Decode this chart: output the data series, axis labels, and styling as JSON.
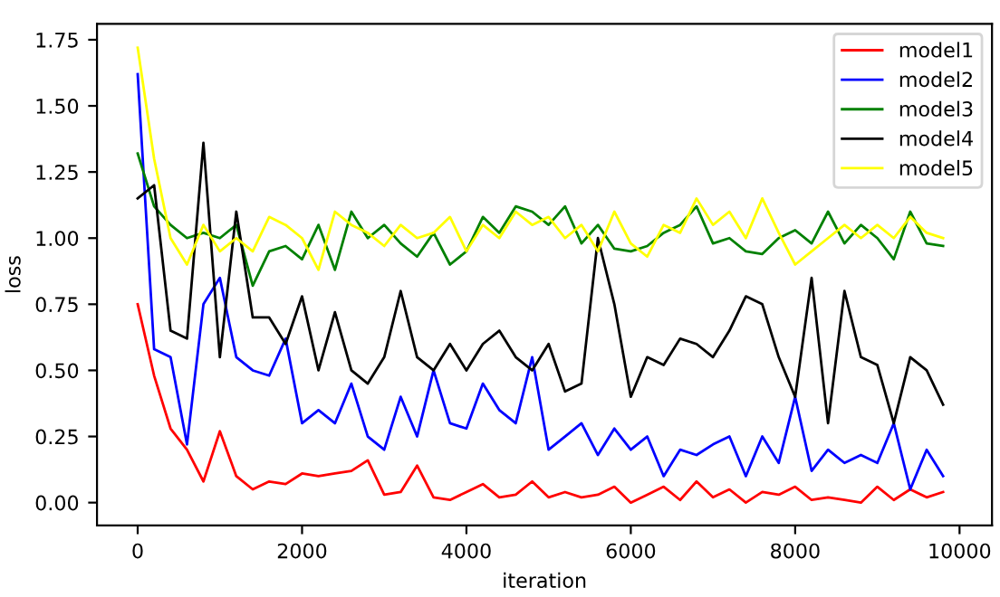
{
  "chart_data": {
    "type": "line",
    "xlabel": "iteration",
    "ylabel": "loss",
    "x": [
      0,
      200,
      400,
      600,
      800,
      1000,
      1200,
      1400,
      1600,
      1800,
      2000,
      2200,
      2400,
      2600,
      2800,
      3000,
      3200,
      3400,
      3600,
      3800,
      4000,
      4200,
      4400,
      4600,
      4800,
      5000,
      5200,
      5400,
      5600,
      5800,
      6000,
      6200,
      6400,
      6600,
      6800,
      7000,
      7200,
      7400,
      7600,
      7800,
      8000,
      8200,
      8400,
      8600,
      8800,
      9000,
      9200,
      9400,
      9600,
      9800
    ],
    "series": [
      {
        "name": "model1",
        "color": "#ff0000",
        "values": [
          0.75,
          0.48,
          0.28,
          0.2,
          0.08,
          0.27,
          0.1,
          0.05,
          0.08,
          0.07,
          0.11,
          0.1,
          0.11,
          0.12,
          0.16,
          0.03,
          0.04,
          0.14,
          0.02,
          0.01,
          0.04,
          0.07,
          0.02,
          0.03,
          0.08,
          0.02,
          0.04,
          0.02,
          0.03,
          0.06,
          0.0,
          0.03,
          0.06,
          0.01,
          0.08,
          0.02,
          0.05,
          0.0,
          0.04,
          0.03,
          0.06,
          0.01,
          0.02,
          0.01,
          0.0,
          0.06,
          0.01,
          0.05,
          0.02,
          0.04
        ]
      },
      {
        "name": "model2",
        "color": "#0000ff",
        "values": [
          1.62,
          0.58,
          0.55,
          0.22,
          0.75,
          0.85,
          0.55,
          0.5,
          0.48,
          0.62,
          0.3,
          0.35,
          0.3,
          0.45,
          0.25,
          0.2,
          0.4,
          0.25,
          0.5,
          0.3,
          0.28,
          0.45,
          0.35,
          0.3,
          0.55,
          0.2,
          0.25,
          0.3,
          0.18,
          0.28,
          0.2,
          0.25,
          0.1,
          0.2,
          0.18,
          0.22,
          0.25,
          0.1,
          0.25,
          0.15,
          0.4,
          0.12,
          0.2,
          0.15,
          0.18,
          0.15,
          0.3,
          0.05,
          0.2,
          0.1
        ]
      },
      {
        "name": "model3",
        "color": "#008000",
        "values": [
          1.32,
          1.12,
          1.05,
          1.0,
          1.02,
          1.0,
          1.05,
          0.82,
          0.95,
          0.97,
          0.92,
          1.05,
          0.88,
          1.1,
          1.0,
          1.05,
          0.98,
          0.93,
          1.02,
          0.9,
          0.95,
          1.08,
          1.02,
          1.12,
          1.1,
          1.05,
          1.12,
          0.98,
          1.05,
          0.96,
          0.95,
          0.97,
          1.02,
          1.05,
          1.12,
          0.98,
          1.0,
          0.95,
          0.94,
          1.0,
          1.03,
          0.98,
          1.1,
          0.98,
          1.05,
          1.0,
          0.92,
          1.1,
          0.98,
          0.97
        ]
      },
      {
        "name": "model4",
        "color": "#000000",
        "values": [
          1.15,
          1.2,
          0.65,
          0.62,
          1.36,
          0.55,
          1.1,
          0.7,
          0.7,
          0.6,
          0.78,
          0.5,
          0.72,
          0.5,
          0.45,
          0.55,
          0.8,
          0.55,
          0.5,
          0.6,
          0.5,
          0.6,
          0.65,
          0.55,
          0.5,
          0.6,
          0.42,
          0.45,
          1.0,
          0.75,
          0.4,
          0.55,
          0.52,
          0.62,
          0.6,
          0.55,
          0.65,
          0.78,
          0.75,
          0.55,
          0.4,
          0.85,
          0.3,
          0.8,
          0.55,
          0.52,
          0.3,
          0.55,
          0.5,
          0.37
        ]
      },
      {
        "name": "model5",
        "color": "#ffff00",
        "values": [
          1.72,
          1.3,
          1.0,
          0.9,
          1.05,
          0.95,
          1.0,
          0.95,
          1.08,
          1.05,
          1.0,
          0.88,
          1.1,
          1.05,
          1.02,
          0.97,
          1.05,
          1.0,
          1.02,
          1.08,
          0.95,
          1.05,
          1.0,
          1.1,
          1.05,
          1.08,
          1.0,
          1.05,
          0.95,
          1.1,
          0.98,
          0.93,
          1.05,
          1.02,
          1.15,
          1.05,
          1.1,
          1.0,
          1.15,
          1.02,
          0.9,
          0.95,
          1.0,
          1.05,
          1.0,
          1.05,
          1.0,
          1.08,
          1.02,
          1.0
        ]
      }
    ],
    "xlim": [
      -495,
      10395
    ],
    "ylim": [
      -0.086,
      1.81
    ],
    "xticks": [
      0,
      2000,
      4000,
      6000,
      8000,
      10000
    ],
    "yticks": [
      {
        "value": 0,
        "label": "0.00"
      },
      {
        "value": 0.25,
        "label": "0.25"
      },
      {
        "value": 0.5,
        "label": "0.50"
      },
      {
        "value": 0.75,
        "label": "0.75"
      },
      {
        "value": 1,
        "label": "1.00"
      },
      {
        "value": 1.25,
        "label": "1.25"
      },
      {
        "value": 1.5,
        "label": "1.50"
      },
      {
        "value": 1.75,
        "label": "1.75"
      }
    ],
    "legend": "top right",
    "grid": false,
    "marker": "none",
    "line_style": "solid"
  }
}
